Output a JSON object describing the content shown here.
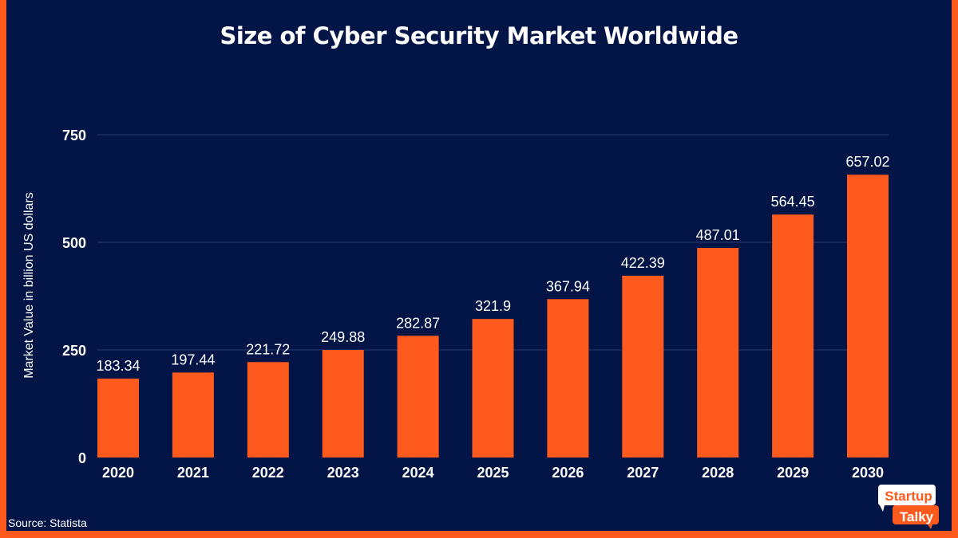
{
  "chart_data": {
    "type": "bar",
    "title": "Size of Cyber Security Market Worldwide",
    "xlabel": "",
    "ylabel": "Market Value in billion US dollars",
    "categories": [
      "2020",
      "2021",
      "2022",
      "2023",
      "2024",
      "2025",
      "2026",
      "2027",
      "2028",
      "2029",
      "2030"
    ],
    "values": [
      183.34,
      197.44,
      221.72,
      249.88,
      282.87,
      321.9,
      367.94,
      422.39,
      487.01,
      564.45,
      657.02
    ],
    "value_labels": [
      "183.34",
      "197.44",
      "221.72",
      "249.88",
      "282.87",
      "321.9",
      "367.94",
      "422.39",
      "487.01",
      "564.45",
      "657.02"
    ],
    "ylim": [
      0,
      750
    ],
    "yticks": [
      0,
      250,
      500,
      750
    ],
    "grid": true,
    "colors": {
      "bar": "#fe5a1d",
      "background": "#031447",
      "border": "#fe5a1d",
      "grid": "#2a3a6e",
      "text": "#ffffff"
    }
  },
  "source": "Source: Statista",
  "logo": {
    "line1": "Startup",
    "line2": "Talky"
  }
}
